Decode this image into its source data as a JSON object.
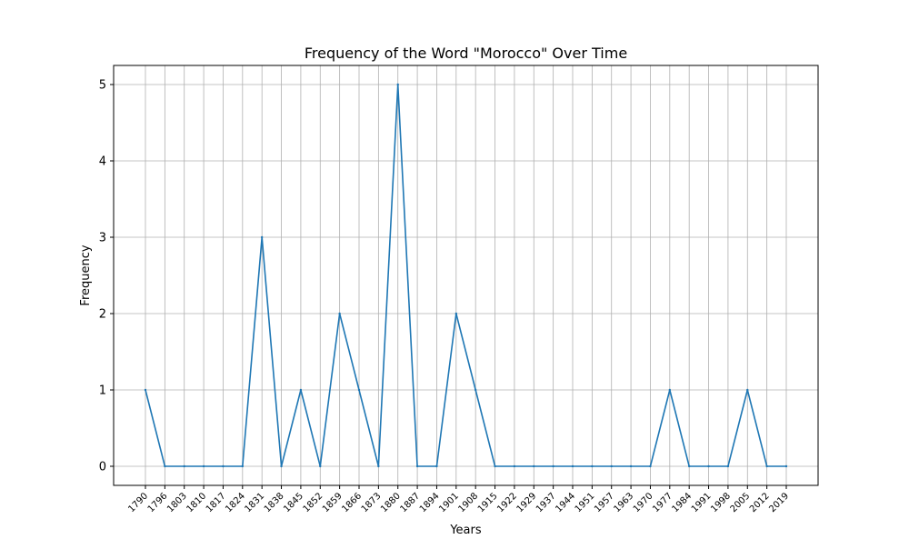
{
  "colors": {
    "line": "#1f77b4",
    "grid": "#b0b0b0",
    "axis": "#000000",
    "background": "#ffffff"
  },
  "chart_data": {
    "type": "line",
    "title": "Frequency of the Word \"Morocco\" Over Time",
    "xlabel": "Years",
    "ylabel": "Frequency",
    "categories": [
      "1790",
      "1796",
      "1803",
      "1810",
      "1817",
      "1824",
      "1831",
      "1838",
      "1845",
      "1852",
      "1859",
      "1866",
      "1873",
      "1880",
      "1887",
      "1894",
      "1901",
      "1908",
      "1915",
      "1922",
      "1929",
      "1937",
      "1944",
      "1951",
      "1957",
      "1963",
      "1970",
      "1977",
      "1984",
      "1991",
      "1998",
      "2005",
      "2012",
      "2019"
    ],
    "series": [
      {
        "values": [
          1,
          0,
          0,
          0,
          0,
          0,
          3,
          0,
          1,
          0,
          2,
          1,
          0,
          5,
          0,
          0,
          2,
          1,
          0,
          0,
          0,
          0,
          0,
          0,
          0,
          0,
          0,
          1,
          0,
          0,
          0,
          1,
          0,
          0
        ]
      }
    ],
    "ylim": [
      -0.25,
      5.25
    ],
    "yticks": [
      0,
      1,
      2,
      3,
      4,
      5
    ],
    "grid": true,
    "legend": "none"
  }
}
